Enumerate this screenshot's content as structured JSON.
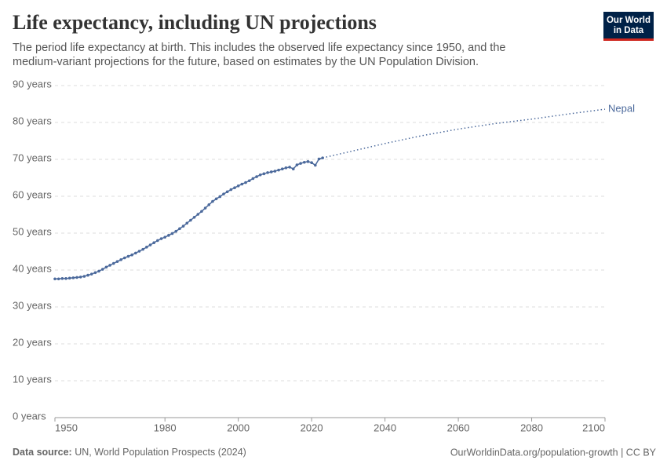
{
  "chart_data": {
    "type": "line",
    "title": "Life expectancy, including UN projections",
    "subtitle": [
      "The period life expectancy at birth. This includes the observed life expectancy since 1950, and the",
      "medium-variant projections for the future, based on estimates by the UN Population Division."
    ],
    "logo": [
      "Our World",
      "in Data"
    ],
    "source_label": "Data source:",
    "source": "UN, World Population Prospects (2024)",
    "footer_right": "OurWorldinData.org/population-growth | CC BY",
    "xlim": [
      1950,
      2100
    ],
    "xticks": [
      1950,
      1980,
      2000,
      2020,
      2040,
      2060,
      2080,
      2100
    ],
    "ylim": [
      0,
      90
    ],
    "yticks": [
      {
        "value": 0,
        "label": "0 years"
      },
      {
        "value": 10,
        "label": "10 years"
      },
      {
        "value": 20,
        "label": "20 years"
      },
      {
        "value": 30,
        "label": "30 years"
      },
      {
        "value": 40,
        "label": "40 years"
      },
      {
        "value": 50,
        "label": "50 years"
      },
      {
        "value": 60,
        "label": "60 years"
      },
      {
        "value": 70,
        "label": "70 years"
      },
      {
        "value": 80,
        "label": "80 years"
      },
      {
        "value": 90,
        "label": "90 years"
      }
    ],
    "grid": true,
    "series": [
      {
        "name": "Nepal",
        "color": "#4c6a9c",
        "markers": true,
        "x": [
          1950,
          1951,
          1952,
          1953,
          1954,
          1955,
          1956,
          1957,
          1958,
          1959,
          1960,
          1961,
          1962,
          1963,
          1964,
          1965,
          1966,
          1967,
          1968,
          1969,
          1970,
          1971,
          1972,
          1973,
          1974,
          1975,
          1976,
          1977,
          1978,
          1979,
          1980,
          1981,
          1982,
          1983,
          1984,
          1985,
          1986,
          1987,
          1988,
          1989,
          1990,
          1991,
          1992,
          1993,
          1994,
          1995,
          1996,
          1997,
          1998,
          1999,
          2000,
          2001,
          2002,
          2003,
          2004,
          2005,
          2006,
          2007,
          2008,
          2009,
          2010,
          2011,
          2012,
          2013,
          2014,
          2015,
          2016,
          2017,
          2018,
          2019,
          2020,
          2021,
          2022,
          2023
        ],
        "values": [
          37.6,
          37.6,
          37.7,
          37.7,
          37.8,
          37.9,
          38.0,
          38.1,
          38.3,
          38.6,
          38.9,
          39.3,
          39.7,
          40.2,
          40.8,
          41.3,
          41.8,
          42.3,
          42.8,
          43.3,
          43.7,
          44.1,
          44.6,
          45.1,
          45.6,
          46.2,
          46.8,
          47.4,
          48.0,
          48.5,
          48.9,
          49.4,
          49.9,
          50.5,
          51.2,
          51.9,
          52.7,
          53.5,
          54.3,
          55.1,
          55.9,
          56.8,
          57.7,
          58.6,
          59.3,
          59.9,
          60.6,
          61.2,
          61.8,
          62.3,
          62.8,
          63.3,
          63.7,
          64.2,
          64.8,
          65.3,
          65.8,
          66.1,
          66.4,
          66.6,
          66.8,
          67.1,
          67.4,
          67.7,
          67.9,
          67.4,
          68.5,
          68.9,
          69.2,
          69.4,
          69.1,
          68.4,
          70.1,
          70.4
        ]
      },
      {
        "color": "#4c6a9c",
        "dash": "dotted",
        "x": [
          2023,
          2030,
          2040,
          2050,
          2060,
          2070,
          2080,
          2090,
          2100
        ],
        "values": [
          70.4,
          72.0,
          74.3,
          76.4,
          78.2,
          79.7,
          80.9,
          82.3,
          83.6
        ]
      }
    ]
  }
}
